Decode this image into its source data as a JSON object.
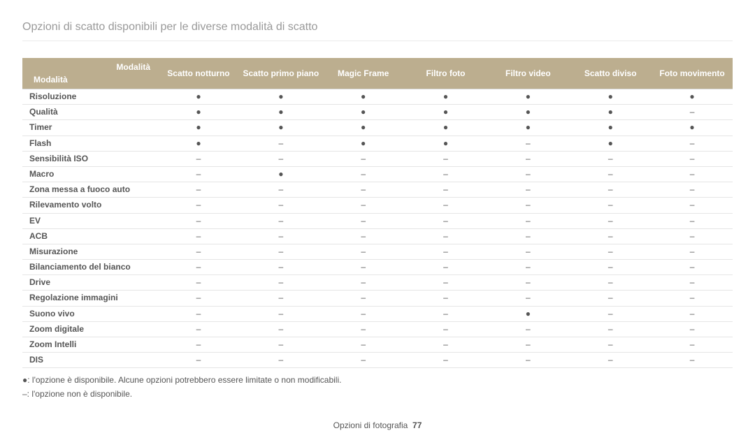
{
  "title": "Opzioni di scatto disponibili per le diverse modalità di scatto",
  "header": {
    "topLabel": "Modalità",
    "bottomLabel": "Modalità",
    "cols": [
      "Scatto notturno",
      "Scatto primo piano",
      "Magic Frame",
      "Filtro foto",
      "Filtro video",
      "Scatto diviso",
      "Foto movimento"
    ]
  },
  "dot": "●",
  "dash": "–",
  "rows": [
    {
      "label": "Risoluzione",
      "vals": [
        "●",
        "●",
        "●",
        "●",
        "●",
        "●",
        "●"
      ]
    },
    {
      "label": "Qualità",
      "vals": [
        "●",
        "●",
        "●",
        "●",
        "●",
        "●",
        "–"
      ]
    },
    {
      "label": "Timer",
      "vals": [
        "●",
        "●",
        "●",
        "●",
        "●",
        "●",
        "●"
      ]
    },
    {
      "label": "Flash",
      "vals": [
        "●",
        "–",
        "●",
        "●",
        "–",
        "●",
        "–"
      ]
    },
    {
      "label": "Sensibilità ISO",
      "vals": [
        "–",
        "–",
        "–",
        "–",
        "–",
        "–",
        "–"
      ]
    },
    {
      "label": "Macro",
      "vals": [
        "–",
        "●",
        "–",
        "–",
        "–",
        "–",
        "–"
      ]
    },
    {
      "label": "Zona messa a fuoco auto",
      "vals": [
        "–",
        "–",
        "–",
        "–",
        "–",
        "–",
        "–"
      ]
    },
    {
      "label": "Rilevamento volto",
      "vals": [
        "–",
        "–",
        "–",
        "–",
        "–",
        "–",
        "–"
      ]
    },
    {
      "label": "EV",
      "vals": [
        "–",
        "–",
        "–",
        "–",
        "–",
        "–",
        "–"
      ]
    },
    {
      "label": "ACB",
      "vals": [
        "–",
        "–",
        "–",
        "–",
        "–",
        "–",
        "–"
      ]
    },
    {
      "label": "Misurazione",
      "vals": [
        "–",
        "–",
        "–",
        "–",
        "–",
        "–",
        "–"
      ]
    },
    {
      "label": "Bilanciamento del bianco",
      "vals": [
        "–",
        "–",
        "–",
        "–",
        "–",
        "–",
        "–"
      ]
    },
    {
      "label": "Drive",
      "vals": [
        "–",
        "–",
        "–",
        "–",
        "–",
        "–",
        "–"
      ]
    },
    {
      "label": "Regolazione immagini",
      "vals": [
        "–",
        "–",
        "–",
        "–",
        "–",
        "–",
        "–"
      ]
    },
    {
      "label": "Suono vivo",
      "vals": [
        "–",
        "–",
        "–",
        "–",
        "●",
        "–",
        "–"
      ]
    },
    {
      "label": "Zoom digitale",
      "vals": [
        "–",
        "–",
        "–",
        "–",
        "–",
        "–",
        "–"
      ]
    },
    {
      "label": "Zoom Intelli",
      "vals": [
        "–",
        "–",
        "–",
        "–",
        "–",
        "–",
        "–"
      ]
    },
    {
      "label": "DIS",
      "vals": [
        "–",
        "–",
        "–",
        "–",
        "–",
        "–",
        "–"
      ]
    }
  ],
  "legend": {
    "line1": "●: l'opzione è disponibile. Alcune opzioni potrebbero essere limitate o non modificabili.",
    "line2": "–: l'opzione non è disponibile."
  },
  "footer": {
    "section": "Opzioni di fotografia",
    "page": "77"
  },
  "style": {
    "headerBg": "#bcae8f",
    "headerText": "#ffffff",
    "rowBorder": "#e5e5e5",
    "textColor": "#555555",
    "titleColor": "#999999",
    "colWidths": [
      "19%",
      "11.6%",
      "11.6%",
      "11.6%",
      "11.6%",
      "11.6%",
      "11.6%",
      "11.6%"
    ]
  }
}
